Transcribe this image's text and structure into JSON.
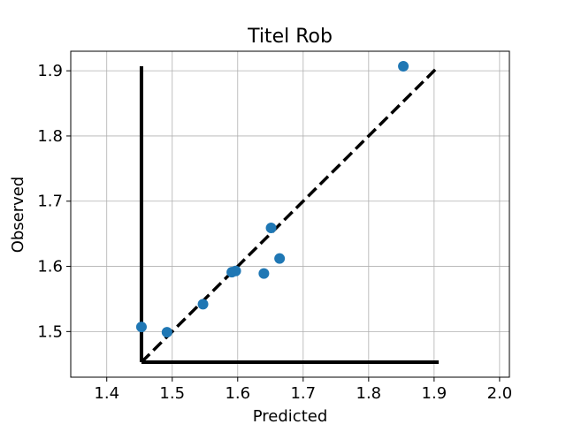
{
  "chart_data": {
    "type": "scatter",
    "title": "Titel Rob",
    "xlabel": "Predicted",
    "ylabel": "Observed",
    "xlim": [
      1.345,
      2.015
    ],
    "ylim": [
      1.43,
      1.93
    ],
    "grid": true,
    "x_ticks": [
      1.4,
      1.5,
      1.6,
      1.7,
      1.8,
      1.9,
      2.0
    ],
    "x_tick_labels": [
      "1.4",
      "1.5",
      "1.6",
      "1.7",
      "1.8",
      "1.9",
      "2.0"
    ],
    "y_ticks": [
      1.5,
      1.6,
      1.7,
      1.8,
      1.9
    ],
    "y_tick_labels": [
      "1.5",
      "1.6",
      "1.7",
      "1.8",
      "1.9"
    ],
    "points": [
      {
        "x": 1.453,
        "y": 1.507
      },
      {
        "x": 1.492,
        "y": 1.499
      },
      {
        "x": 1.547,
        "y": 1.542
      },
      {
        "x": 1.591,
        "y": 1.591
      },
      {
        "x": 1.597,
        "y": 1.593
      },
      {
        "x": 1.64,
        "y": 1.589
      },
      {
        "x": 1.651,
        "y": 1.659
      },
      {
        "x": 1.664,
        "y": 1.612
      },
      {
        "x": 1.853,
        "y": 1.907
      }
    ],
    "point_color": "#1f77b4",
    "identity_line": {
      "x": [
        1.453,
        1.907
      ],
      "y": [
        1.453,
        1.907
      ],
      "style": "dashed",
      "color": "#000000"
    },
    "axis_lines": {
      "vertical": {
        "x": 1.453,
        "y": [
          1.453,
          1.907
        ]
      },
      "horizontal": {
        "y": 1.453,
        "x": [
          1.453,
          1.907
        ]
      },
      "color": "#000000"
    }
  }
}
